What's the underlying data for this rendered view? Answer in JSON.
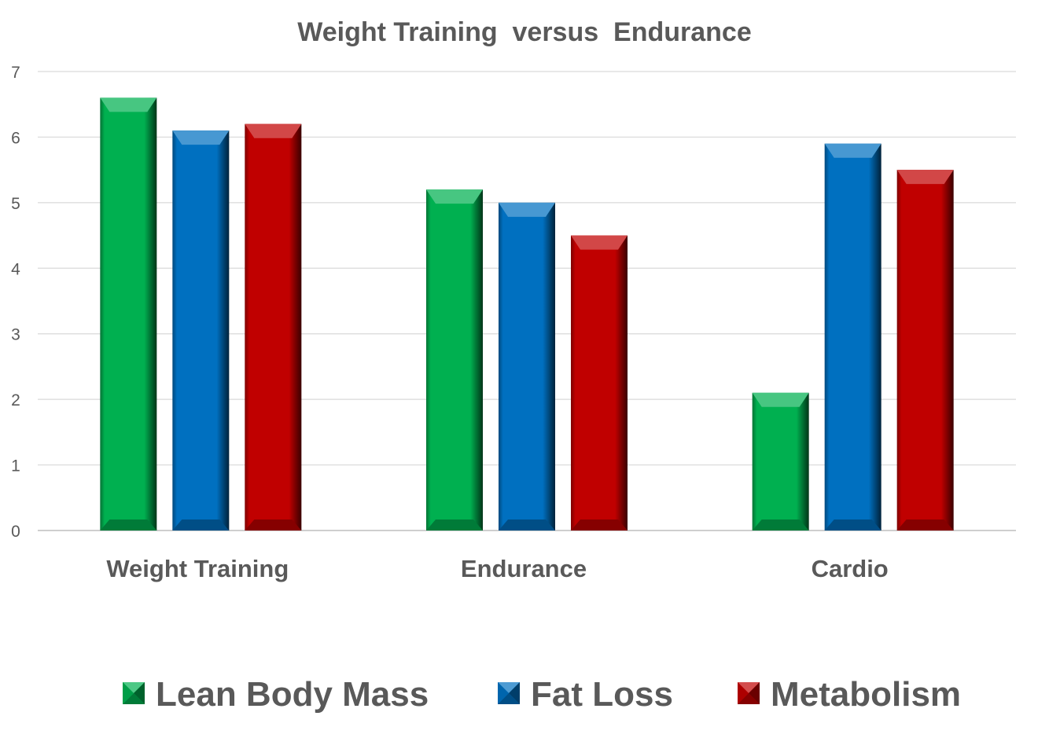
{
  "chart_data": {
    "type": "bar",
    "title": "Weight Training  versus  Endurance",
    "xlabel": "",
    "ylabel": "",
    "ylim": [
      0,
      7
    ],
    "yticks": [
      0,
      1,
      2,
      3,
      4,
      5,
      6,
      7
    ],
    "grid": true,
    "legend_position": "bottom",
    "categories": [
      "Weight Training",
      "Endurance",
      "Cardio"
    ],
    "series": [
      {
        "name": "Lean Body Mass",
        "color": "#00B050",
        "values": [
          6.6,
          5.2,
          2.1
        ]
      },
      {
        "name": "Fat Loss",
        "color": "#0070C0",
        "values": [
          6.1,
          5.0,
          5.9
        ]
      },
      {
        "name": "Metabolism",
        "color": "#C00000",
        "values": [
          6.2,
          4.5,
          5.5
        ]
      }
    ]
  }
}
